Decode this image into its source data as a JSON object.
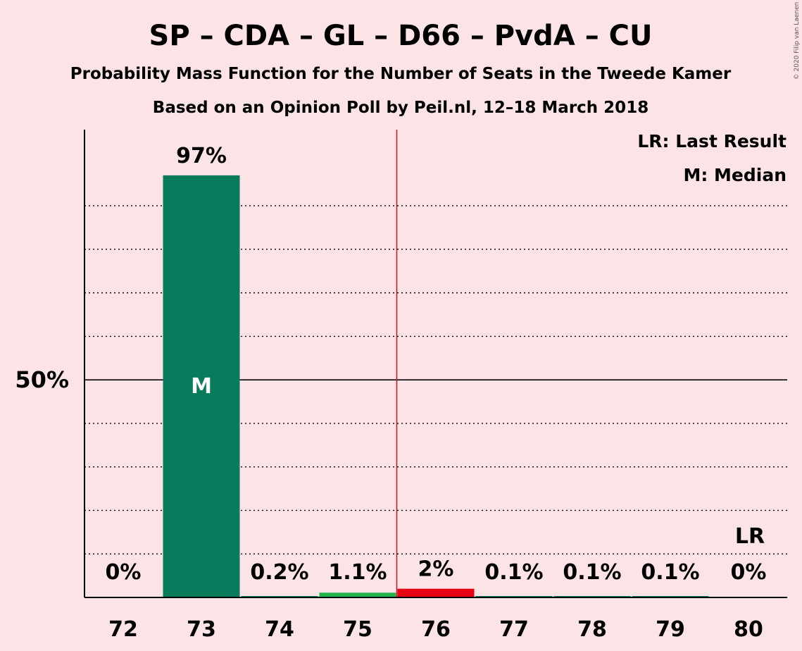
{
  "chart_data": {
    "type": "bar",
    "title": "SP – CDA – GL – D66 – PvdA – CU",
    "subtitle": "Probability Mass Function for the Number of Seats in the Tweede Kamer",
    "subtitle2": "Based on an Opinion Poll by Peil.nl, 12–18 March 2018",
    "credit": "© 2020 Filip van Laenen",
    "legend": [
      "LR: Last Result",
      "M: Median"
    ],
    "categories": [
      "72",
      "73",
      "74",
      "75",
      "76",
      "77",
      "78",
      "79",
      "80"
    ],
    "values": [
      0,
      97,
      0.2,
      1.1,
      2,
      0.1,
      0.1,
      0.1,
      0
    ],
    "labels": [
      "0%",
      "97%",
      "0.2%",
      "1.1%",
      "2%",
      "0.1%",
      "0.1%",
      "0.1%",
      "0%"
    ],
    "colors": [
      "#077b5b",
      "#077b5b",
      "#077b5b",
      "#22b24c",
      "#e60012",
      "#077b5b",
      "#077b5b",
      "#077b5b",
      "#077b5b"
    ],
    "ylim": [
      0,
      100
    ],
    "yticks": [
      {
        "value": 50,
        "label": "50%"
      }
    ],
    "gridlines": [
      10,
      20,
      30,
      40,
      60,
      70,
      80,
      90
    ],
    "median": {
      "category": "73",
      "label": "M"
    },
    "last_result": {
      "category": "80",
      "label": "LR"
    },
    "majority_line_after": "75",
    "majority_color": "#c0102a"
  }
}
